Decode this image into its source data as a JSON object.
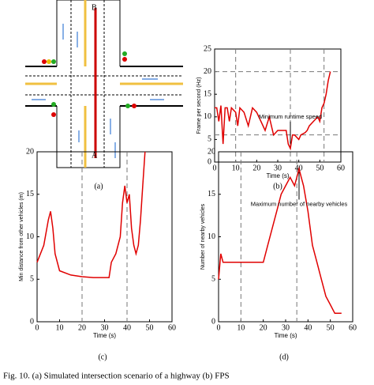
{
  "diagram": {
    "labels": [
      "B",
      "A"
    ]
  },
  "panel_labels": [
    "(a)",
    "(b)",
    "(c)",
    "(d)"
  ],
  "caption": "Fig. 10.   (a)   Simulated   intersection   scenario   of   a   highway   (b)   FPS",
  "chart_data": [
    {
      "type": "line",
      "xlabel": "Time (s)",
      "ylabel": "Frame per second (Hz)",
      "annotation": "Minimum runtime speed",
      "color": "#e00000",
      "x": [
        0,
        1,
        2,
        3,
        4,
        5,
        6,
        7,
        8,
        10,
        11,
        12,
        14,
        16,
        18,
        20,
        22,
        24,
        26,
        28,
        30,
        32,
        34,
        35,
        36,
        37,
        38,
        40,
        41,
        43,
        44,
        45,
        47,
        49,
        50,
        51,
        52,
        53,
        54,
        55
      ],
      "values": [
        12,
        12,
        9,
        12.5,
        4,
        12,
        12,
        9,
        12,
        11,
        8,
        12,
        11,
        8,
        12,
        11,
        9,
        7,
        10,
        6,
        7,
        7,
        7,
        4,
        3,
        6,
        6,
        5,
        6,
        6.5,
        7,
        8,
        9,
        10,
        9,
        12,
        13,
        15,
        18,
        20
      ],
      "xlim": [
        0,
        60
      ],
      "xticks": [
        0,
        10,
        20,
        30,
        40,
        50,
        60
      ],
      "ylim": [
        0,
        25
      ],
      "yticks": [
        0,
        5,
        10,
        15,
        20,
        25
      ],
      "vlines": [
        10,
        36,
        52
      ],
      "hlines": [
        20,
        6
      ]
    },
    {
      "type": "line",
      "xlabel": "Time (s)",
      "ylabel": "Min distance from other vehicles (m)",
      "color": "#e00000",
      "x": [
        0,
        3,
        5,
        6,
        7,
        8,
        10,
        15,
        20,
        25,
        30,
        32,
        33,
        35,
        37,
        38,
        39,
        40,
        41,
        42,
        43,
        44,
        45,
        46,
        47,
        48
      ],
      "values": [
        7,
        9,
        12,
        13,
        11,
        8,
        6,
        5.5,
        5.3,
        5.2,
        5.2,
        5.2,
        7,
        8,
        10,
        14,
        16,
        14,
        15,
        11,
        9,
        8,
        9,
        12,
        16,
        20
      ],
      "xlim": [
        0,
        60
      ],
      "xticks": [
        0,
        10,
        20,
        30,
        40,
        50,
        60
      ],
      "ylim": [
        0,
        20
      ],
      "yticks": [
        0,
        5,
        10,
        15,
        20
      ],
      "vlines": [
        20,
        40
      ],
      "hlines": []
    },
    {
      "type": "line",
      "xlabel": "Time (s)",
      "ylabel": "Number of nearby vehicles",
      "annotation": "Maximum number of nearby vehicles",
      "color": "#e00000",
      "x": [
        0,
        1,
        2,
        20,
        22,
        24,
        26,
        28,
        30,
        32,
        34,
        35,
        36,
        37,
        38,
        40,
        42,
        44,
        46,
        48,
        50,
        52,
        55
      ],
      "values": [
        5,
        8,
        7,
        7,
        9,
        11,
        13,
        15,
        16,
        17,
        16,
        17,
        18,
        17,
        16,
        13,
        9,
        7,
        5,
        3,
        2,
        1,
        1
      ],
      "xlim": [
        0,
        60
      ],
      "xticks": [
        0,
        10,
        20,
        30,
        40,
        50,
        60
      ],
      "ylim": [
        0,
        20
      ],
      "yticks": [
        0,
        5,
        10,
        15,
        20
      ],
      "vlines": [
        10,
        35
      ],
      "hlines": []
    }
  ]
}
